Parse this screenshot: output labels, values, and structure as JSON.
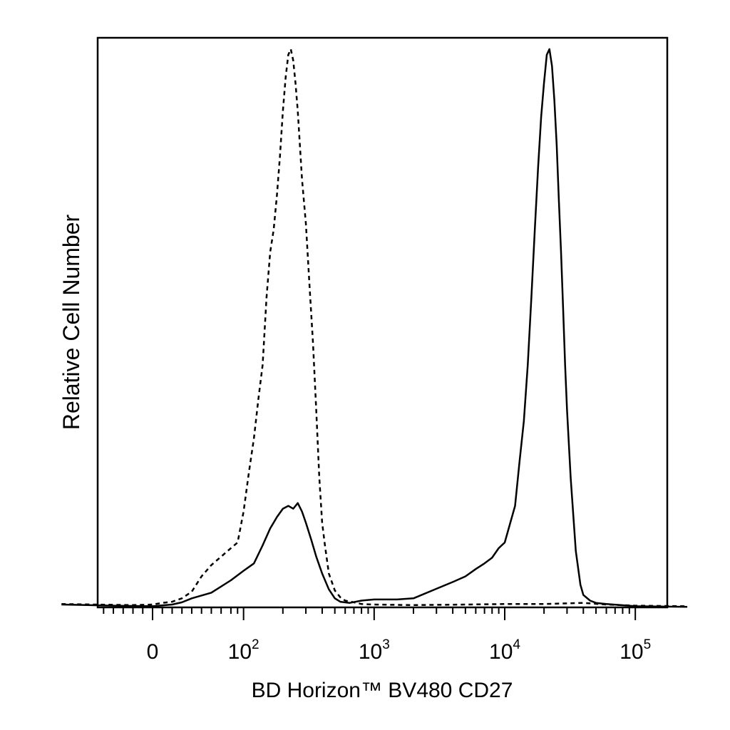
{
  "chart_data": {
    "type": "line",
    "title": "",
    "xlabel": "BD Horizon™ BV480 CD27",
    "ylabel": "Relative Cell Number",
    "x_scale": "biexponential",
    "xlim": [
      -100,
      250000
    ],
    "ylim": [
      0,
      100
    ],
    "grid": false,
    "legend": "none",
    "x_tick_labels": [
      {
        "value": 0,
        "base": "0",
        "exp": ""
      },
      {
        "value": 100,
        "base": "10",
        "exp": "2"
      },
      {
        "value": 1000,
        "base": "10",
        "exp": "3"
      },
      {
        "value": 10000,
        "base": "10",
        "exp": "4"
      },
      {
        "value": 100000,
        "base": "10",
        "exp": "5"
      }
    ],
    "minor_ticks": [
      -90,
      -80,
      -70,
      -60,
      -50,
      -40,
      -30,
      -20,
      -10,
      10,
      20,
      30,
      40,
      50,
      60,
      70,
      80,
      90,
      200,
      300,
      400,
      500,
      600,
      700,
      800,
      900,
      2000,
      3000,
      4000,
      5000,
      6000,
      7000,
      8000,
      9000,
      20000,
      30000,
      40000,
      50000,
      60000,
      70000,
      80000,
      90000,
      200000
    ],
    "series": [
      {
        "style": "dashed",
        "color": "#000000",
        "points": [
          [
            -100,
            0.6
          ],
          [
            -20,
            0.4
          ],
          [
            0,
            0.5
          ],
          [
            10,
            0.8
          ],
          [
            20,
            1.0
          ],
          [
            30,
            1.6
          ],
          [
            40,
            2.8
          ],
          [
            50,
            5.5
          ],
          [
            60,
            7.5
          ],
          [
            70,
            9.0
          ],
          [
            80,
            10.5
          ],
          [
            90,
            11.5
          ],
          [
            100,
            17
          ],
          [
            110,
            24
          ],
          [
            120,
            30
          ],
          [
            130,
            37
          ],
          [
            140,
            43
          ],
          [
            150,
            55
          ],
          [
            160,
            63
          ],
          [
            170,
            67
          ],
          [
            180,
            73
          ],
          [
            190,
            80
          ],
          [
            200,
            88
          ],
          [
            210,
            94
          ],
          [
            220,
            98
          ],
          [
            230,
            99
          ],
          [
            240,
            97
          ],
          [
            250,
            93
          ],
          [
            260,
            88
          ],
          [
            280,
            76
          ],
          [
            300,
            68
          ],
          [
            320,
            57
          ],
          [
            340,
            47
          ],
          [
            360,
            35
          ],
          [
            380,
            23
          ],
          [
            400,
            15
          ],
          [
            420,
            11
          ],
          [
            450,
            6
          ],
          [
            500,
            3
          ],
          [
            550,
            1.8
          ],
          [
            600,
            1.2
          ],
          [
            700,
            0.9
          ],
          [
            800,
            0.6
          ],
          [
            1000,
            0.5
          ],
          [
            2000,
            0.4
          ],
          [
            5000,
            0.5
          ],
          [
            10000,
            0.6
          ],
          [
            20000,
            0.6
          ],
          [
            40000,
            0.8
          ],
          [
            60000,
            0.5
          ],
          [
            100000,
            0.3
          ],
          [
            250000,
            0.2
          ]
        ]
      },
      {
        "style": "solid",
        "color": "#000000",
        "points": [
          [
            -100,
            0.5
          ],
          [
            -40,
            0.3
          ],
          [
            0,
            0.2
          ],
          [
            20,
            0.5
          ],
          [
            30,
            0.9
          ],
          [
            40,
            1.6
          ],
          [
            60,
            2.6
          ],
          [
            80,
            4.8
          ],
          [
            100,
            6.5
          ],
          [
            120,
            7.8
          ],
          [
            140,
            11
          ],
          [
            160,
            14
          ],
          [
            180,
            16
          ],
          [
            200,
            17.5
          ],
          [
            220,
            18
          ],
          [
            240,
            17.5
          ],
          [
            260,
            18.5
          ],
          [
            280,
            17
          ],
          [
            300,
            15
          ],
          [
            330,
            12
          ],
          [
            360,
            9
          ],
          [
            400,
            6
          ],
          [
            450,
            3.2
          ],
          [
            500,
            1.6
          ],
          [
            550,
            1.0
          ],
          [
            650,
            0.8
          ],
          [
            800,
            1.2
          ],
          [
            1000,
            1.4
          ],
          [
            1500,
            1.4
          ],
          [
            2000,
            1.6
          ],
          [
            3000,
            3.3
          ],
          [
            4000,
            4.5
          ],
          [
            5000,
            5.5
          ],
          [
            6000,
            6.8
          ],
          [
            7000,
            7.8
          ],
          [
            8000,
            8.8
          ],
          [
            9000,
            10.5
          ],
          [
            10000,
            11.5
          ],
          [
            12000,
            18
          ],
          [
            13000,
            26
          ],
          [
            14000,
            33
          ],
          [
            15000,
            43
          ],
          [
            16000,
            55
          ],
          [
            17000,
            67
          ],
          [
            18000,
            78
          ],
          [
            19000,
            87
          ],
          [
            20000,
            93
          ],
          [
            21000,
            98
          ],
          [
            22000,
            99
          ],
          [
            23000,
            96
          ],
          [
            24000,
            90
          ],
          [
            25000,
            82
          ],
          [
            26000,
            72
          ],
          [
            27000,
            63
          ],
          [
            28000,
            53
          ],
          [
            29000,
            43
          ],
          [
            30000,
            35
          ],
          [
            32000,
            23
          ],
          [
            35000,
            10
          ],
          [
            38000,
            4
          ],
          [
            40000,
            2.2
          ],
          [
            45000,
            1.2
          ],
          [
            50000,
            0.8
          ],
          [
            60000,
            0.6
          ],
          [
            100000,
            0.2
          ],
          [
            250000,
            0.1
          ]
        ]
      }
    ]
  }
}
